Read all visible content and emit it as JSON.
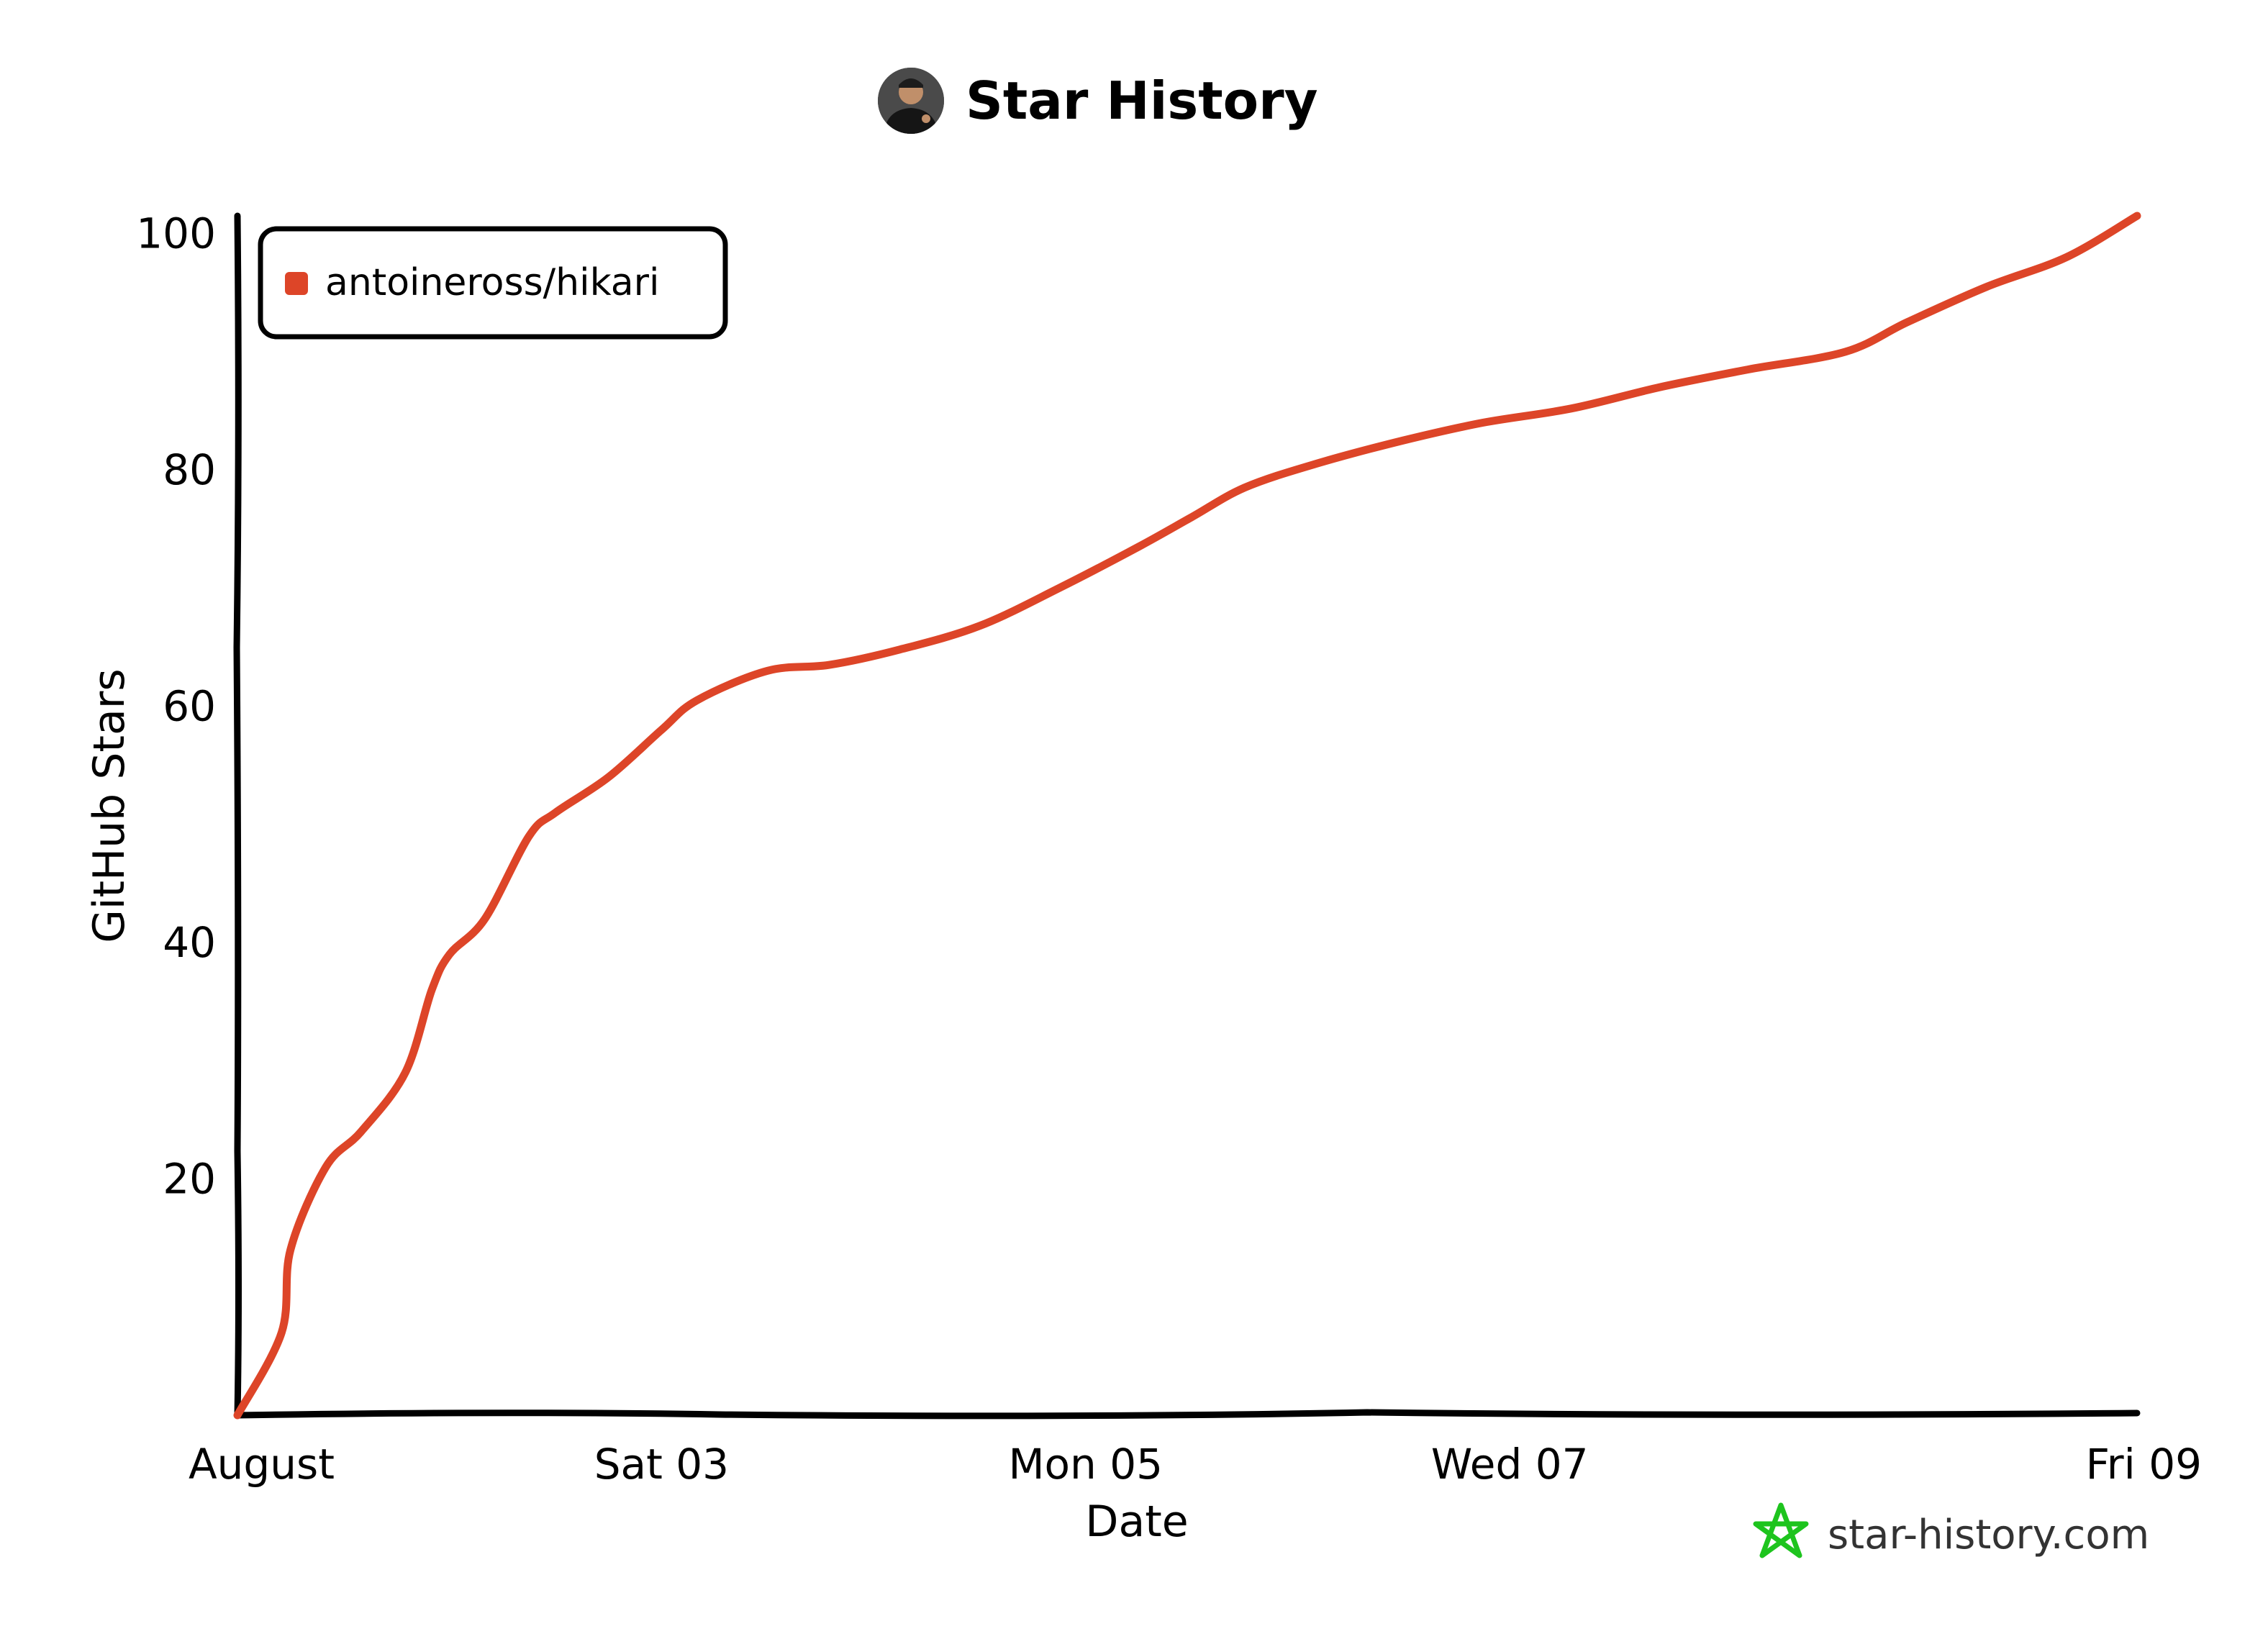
{
  "header": {
    "title": "Star History",
    "avatar_icon": "avatar-photo"
  },
  "colors": {
    "series": "#dd4528",
    "axis": "#000000",
    "brand_star": "#1ec41e",
    "background": "#ffffff"
  },
  "watermark": {
    "text": "star-history.com",
    "icon": "star-icon"
  },
  "chart_data": {
    "type": "line",
    "title": "Star History",
    "xlabel": "Date",
    "ylabel": "GitHub Stars",
    "x_ticks": [
      "August",
      "Sat 03",
      "Mon 05",
      "Wed 07",
      "Fri 09"
    ],
    "x_range": [
      "2024-08-01",
      "2024-08-09"
    ],
    "y_ticks": [
      20,
      40,
      60,
      80,
      100
    ],
    "ylim": [
      0,
      100
    ],
    "grid": false,
    "legend": {
      "position": "top-left",
      "entries": [
        "antoineross/hikari"
      ]
    },
    "series": [
      {
        "name": "antoineross/hikari",
        "points": [
          {
            "x": "2024-08-01T00:00",
            "y": 0
          },
          {
            "x": "2024-08-01T05:00",
            "y": 7
          },
          {
            "x": "2024-08-01T06:00",
            "y": 14
          },
          {
            "x": "2024-08-01T10:00",
            "y": 21
          },
          {
            "x": "2024-08-01T14:00",
            "y": 24
          },
          {
            "x": "2024-08-01T19:00",
            "y": 29
          },
          {
            "x": "2024-08-01T22:00",
            "y": 36
          },
          {
            "x": "2024-08-02T00:00",
            "y": 39
          },
          {
            "x": "2024-08-02T04:00",
            "y": 42
          },
          {
            "x": "2024-08-02T09:00",
            "y": 49
          },
          {
            "x": "2024-08-02T12:00",
            "y": 51
          },
          {
            "x": "2024-08-02T18:00",
            "y": 54
          },
          {
            "x": "2024-08-03T00:00",
            "y": 58
          },
          {
            "x": "2024-08-03T04:00",
            "y": 60.5
          },
          {
            "x": "2024-08-03T12:00",
            "y": 63
          },
          {
            "x": "2024-08-03T19:00",
            "y": 63.5
          },
          {
            "x": "2024-08-04T03:00",
            "y": 64.8
          },
          {
            "x": "2024-08-04T12:00",
            "y": 66.8
          },
          {
            "x": "2024-08-04T21:00",
            "y": 70
          },
          {
            "x": "2024-08-05T06:00",
            "y": 73.5
          },
          {
            "x": "2024-08-05T12:00",
            "y": 76
          },
          {
            "x": "2024-08-05T18:00",
            "y": 78.5
          },
          {
            "x": "2024-08-06T02:00",
            "y": 80.5
          },
          {
            "x": "2024-08-06T12:00",
            "y": 82.5
          },
          {
            "x": "2024-08-06T21:00",
            "y": 84
          },
          {
            "x": "2024-08-07T07:00",
            "y": 85.2
          },
          {
            "x": "2024-08-07T17:00",
            "y": 87
          },
          {
            "x": "2024-08-08T03:00",
            "y": 88.5
          },
          {
            "x": "2024-08-08T14:00",
            "y": 90
          },
          {
            "x": "2024-08-08T21:00",
            "y": 92.5
          },
          {
            "x": "2024-08-09T06:00",
            "y": 95.5
          },
          {
            "x": "2024-08-09T15:00",
            "y": 98
          },
          {
            "x": "2024-08-09T23:00",
            "y": 101.5
          }
        ]
      }
    ]
  }
}
